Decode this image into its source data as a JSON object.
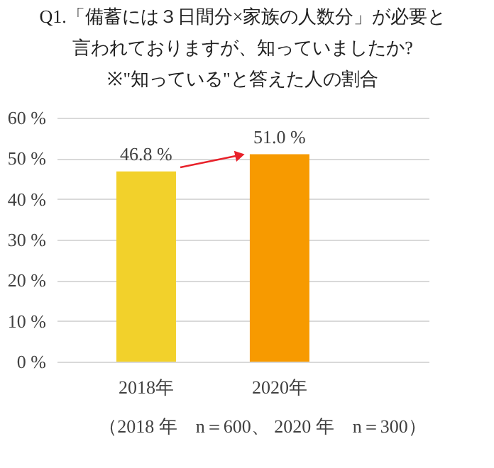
{
  "chart_data": {
    "type": "bar",
    "title": [
      "Q1.「備蓄には３日間分×家族の人数分」が必要と",
      "言われておりますが、知っていましたか?",
      "※\"知っている\"と答えた人の割合"
    ],
    "categories": [
      "2018年",
      "2020年"
    ],
    "values": [
      46.8,
      51.0
    ],
    "colors": [
      "#f2d12b",
      "#f79a00"
    ],
    "value_labels": [
      "46.8 %",
      "51.0 %"
    ],
    "ylim": [
      0,
      60
    ],
    "yticks": [
      {
        "value": 0,
        "label": "0 %"
      },
      {
        "value": 10,
        "label": "10 %"
      },
      {
        "value": 20,
        "label": "20 %"
      },
      {
        "value": 30,
        "label": "30 %"
      },
      {
        "value": 40,
        "label": "40 %"
      },
      {
        "value": 50,
        "label": "50 %"
      },
      {
        "value": 60,
        "label": "60 %"
      }
    ],
    "grid": "y",
    "annotations": [
      "（2018 年　n＝600、 2020 年　n＝300）"
    ]
  }
}
